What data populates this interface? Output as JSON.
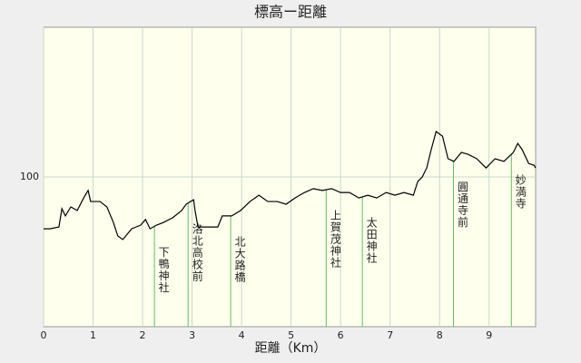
{
  "chart_data": {
    "type": "line",
    "title": "標高ー距離",
    "x_label": "距離（Km）",
    "x": [
      0,
      0.13,
      0.31,
      0.37,
      0.44,
      0.55,
      0.68,
      0.81,
      0.9,
      0.95,
      1.14,
      1.28,
      1.41,
      1.5,
      1.6,
      1.78,
      1.96,
      2.06,
      2.15,
      2.28,
      2.42,
      2.61,
      2.79,
      2.88,
      2.97,
      3.03,
      3.06,
      3.12,
      3.52,
      3.61,
      3.8,
      3.98,
      4.17,
      4.35,
      4.53,
      4.72,
      4.9,
      5.08,
      5.27,
      5.45,
      5.63,
      5.82,
      6.0,
      6.18,
      6.37,
      6.55,
      6.73,
      6.92,
      7.1,
      7.28,
      7.47,
      7.56,
      7.65,
      7.74,
      7.83,
      7.93,
      8.06,
      8.17,
      8.29,
      8.44,
      8.57,
      8.75,
      8.94,
      9.12,
      9.3,
      9.49,
      9.58,
      9.67,
      9.8,
      9.91,
      9.94
    ],
    "series": [
      {
        "color": "#000000",
        "values": [
          82.7,
          82.7,
          83.3,
          89.4,
          87.0,
          90.0,
          88.8,
          93.0,
          95.5,
          91.8,
          91.8,
          90.0,
          84.8,
          80.3,
          79.1,
          82.7,
          83.9,
          85.8,
          82.7,
          83.9,
          84.8,
          86.4,
          88.8,
          90.9,
          91.8,
          92.4,
          88.8,
          83.3,
          83.3,
          87.0,
          87.0,
          88.8,
          91.8,
          93.9,
          91.8,
          91.8,
          90.9,
          93.0,
          94.8,
          96.1,
          95.5,
          96.1,
          94.8,
          94.8,
          93.0,
          93.9,
          93.0,
          94.8,
          93.9,
          94.8,
          93.9,
          98.5,
          100,
          103.0,
          109.1,
          115.2,
          113.6,
          106.1,
          105.2,
          108.2,
          107.6,
          106.1,
          103.0,
          106.1,
          105.2,
          108.2,
          111.2,
          109.1,
          104.5,
          103.9,
          103.0
        ]
      }
    ],
    "xlim": [
      0,
      9.94
    ],
    "xticks": [
      0,
      1,
      2,
      3,
      4,
      5,
      6,
      7,
      8,
      9
    ],
    "ylim": [
      50,
      150
    ],
    "yticks": [
      100
    ],
    "grid": true,
    "annotations": [
      {
        "text": "下鴨神社",
        "x": 2.24
      },
      {
        "text": "洛北高校前",
        "x": 2.92
      },
      {
        "text": "北大路橋",
        "x": 3.78
      },
      {
        "text": "上賀茂神社",
        "x": 5.71
      },
      {
        "text": "太田神社",
        "x": 6.44
      },
      {
        "text": "圓通寺前",
        "x": 8.28
      },
      {
        "text": "妙満寺",
        "x": 9.45
      }
    ],
    "annotation_color": "#66bb66"
  }
}
